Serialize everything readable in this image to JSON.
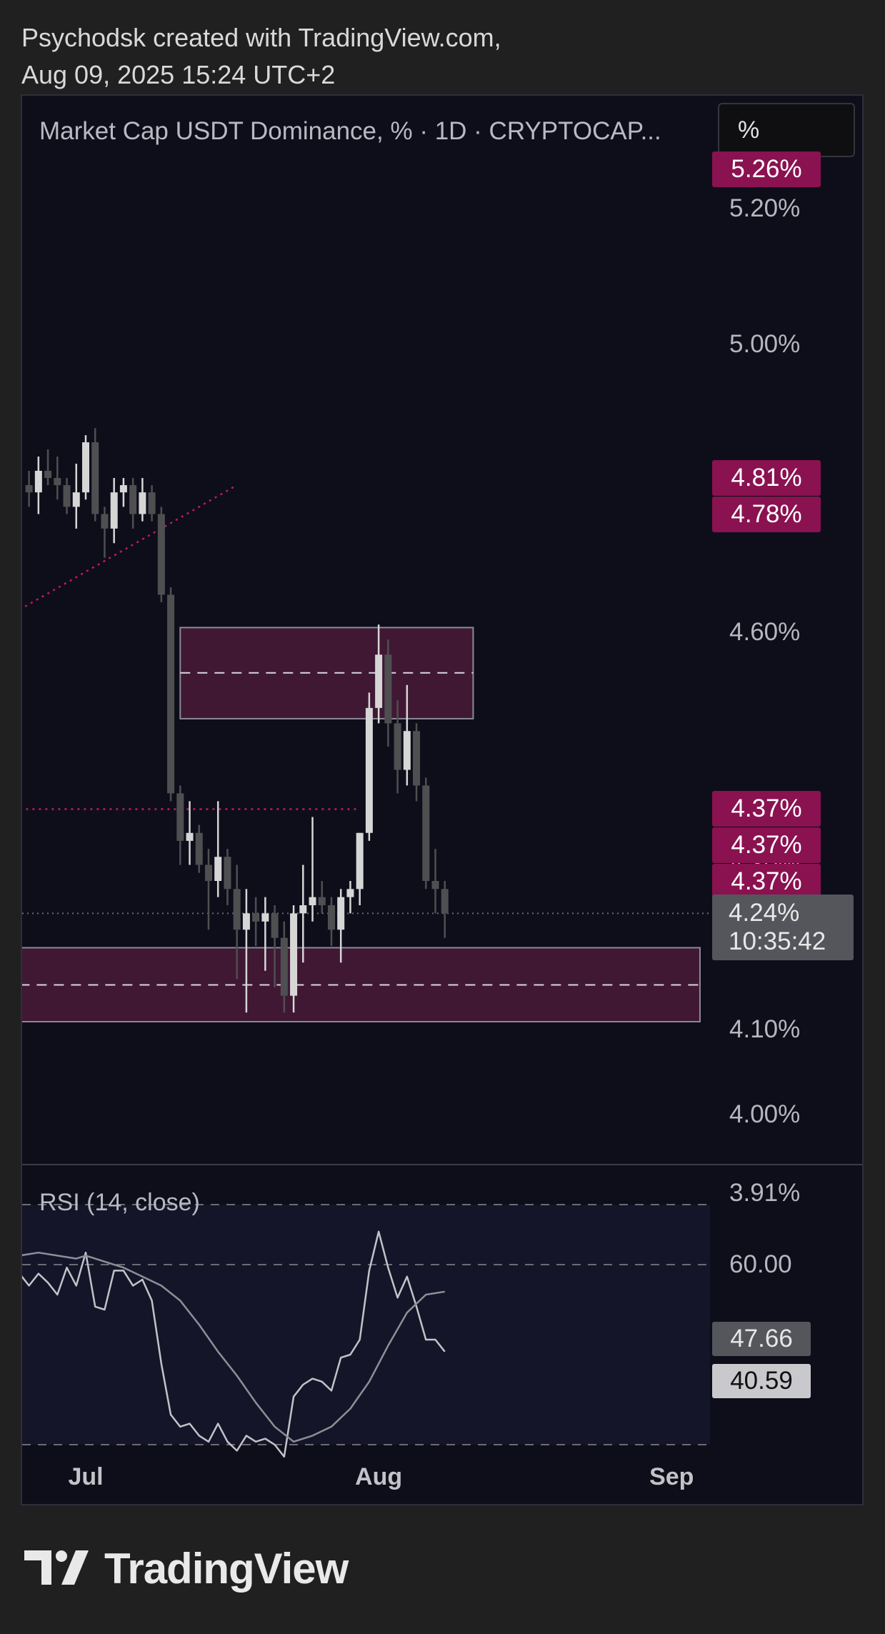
{
  "header": {
    "line1": "Psychodsk created with TradingView.com,",
    "line2": "Aug 09, 2025 15:24 UTC+2"
  },
  "chart": {
    "title": "Market Cap USDT Dominance, % · 1D · CRYPTOCAP...",
    "scale_button": "%",
    "rsi_title": "RSI (14, close)"
  },
  "colors": {
    "background": "#0d0e1a",
    "up_candle": "#d6d6d6",
    "down_candle": "#4f4f52",
    "zone_fill": "#4a1a38",
    "price_tag": "#8a1251",
    "trendline": "#c21a62"
  },
  "chart_data": [
    {
      "type": "candlestick",
      "title": "Market Cap USDT Dominance, % · 1D · CRYPTOCAP...",
      "ylabel": "%",
      "y_scale": "log",
      "ylim": [
        3.86,
        5.34
      ],
      "y_ticks": [
        "5.20%",
        "5.00%",
        "4.60%",
        "4.30%",
        "4.10%",
        "4.00%",
        "3.91%"
      ],
      "x_ticks": [
        "Jul",
        "Aug",
        "Sep"
      ],
      "x_tick_days": [
        0,
        31,
        62
      ],
      "candles": [
        {
          "day": -6,
          "o": 4.8,
          "h": 4.82,
          "l": 4.77,
          "c": 4.79
        },
        {
          "day": -5,
          "o": 4.79,
          "h": 4.84,
          "l": 4.76,
          "c": 4.82
        },
        {
          "day": -4,
          "o": 4.82,
          "h": 4.85,
          "l": 4.8,
          "c": 4.81
        },
        {
          "day": -3,
          "o": 4.81,
          "h": 4.84,
          "l": 4.78,
          "c": 4.8
        },
        {
          "day": -2,
          "o": 4.8,
          "h": 4.81,
          "l": 4.76,
          "c": 4.77
        },
        {
          "day": -1,
          "o": 4.77,
          "h": 4.83,
          "l": 4.74,
          "c": 4.79
        },
        {
          "day": 0,
          "o": 4.79,
          "h": 4.87,
          "l": 4.78,
          "c": 4.86
        },
        {
          "day": 1,
          "o": 4.86,
          "h": 4.88,
          "l": 4.75,
          "c": 4.76
        },
        {
          "day": 2,
          "o": 4.76,
          "h": 4.77,
          "l": 4.7,
          "c": 4.74
        },
        {
          "day": 3,
          "o": 4.74,
          "h": 4.81,
          "l": 4.72,
          "c": 4.79
        },
        {
          "day": 4,
          "o": 4.79,
          "h": 4.81,
          "l": 4.77,
          "c": 4.8
        },
        {
          "day": 5,
          "o": 4.8,
          "h": 4.81,
          "l": 4.74,
          "c": 4.76
        },
        {
          "day": 6,
          "o": 4.76,
          "h": 4.81,
          "l": 4.75,
          "c": 4.79
        },
        {
          "day": 7,
          "o": 4.79,
          "h": 4.8,
          "l": 4.75,
          "c": 4.76
        },
        {
          "day": 8,
          "o": 4.76,
          "h": 4.77,
          "l": 4.64,
          "c": 4.65
        },
        {
          "day": 9,
          "o": 4.65,
          "h": 4.66,
          "l": 4.38,
          "c": 4.39
        },
        {
          "day": 10,
          "o": 4.39,
          "h": 4.4,
          "l": 4.3,
          "c": 4.33
        },
        {
          "day": 11,
          "o": 4.33,
          "h": 4.38,
          "l": 4.3,
          "c": 4.34
        },
        {
          "day": 12,
          "o": 4.34,
          "h": 4.35,
          "l": 4.29,
          "c": 4.3
        },
        {
          "day": 13,
          "o": 4.3,
          "h": 4.32,
          "l": 4.22,
          "c": 4.28
        },
        {
          "day": 14,
          "o": 4.28,
          "h": 4.38,
          "l": 4.26,
          "c": 4.31
        },
        {
          "day": 15,
          "o": 4.31,
          "h": 4.32,
          "l": 4.25,
          "c": 4.27
        },
        {
          "day": 16,
          "o": 4.27,
          "h": 4.3,
          "l": 4.16,
          "c": 4.22
        },
        {
          "day": 17,
          "o": 4.22,
          "h": 4.27,
          "l": 4.12,
          "c": 4.24
        },
        {
          "day": 18,
          "o": 4.24,
          "h": 4.26,
          "l": 4.2,
          "c": 4.23
        },
        {
          "day": 19,
          "o": 4.23,
          "h": 4.26,
          "l": 4.17,
          "c": 4.24
        },
        {
          "day": 20,
          "o": 4.24,
          "h": 4.25,
          "l": 4.15,
          "c": 4.21
        },
        {
          "day": 21,
          "o": 4.21,
          "h": 4.23,
          "l": 4.12,
          "c": 4.14
        },
        {
          "day": 22,
          "o": 4.14,
          "h": 4.25,
          "l": 4.12,
          "c": 4.24
        },
        {
          "day": 23,
          "o": 4.24,
          "h": 4.3,
          "l": 4.18,
          "c": 4.25
        },
        {
          "day": 24,
          "o": 4.25,
          "h": 4.36,
          "l": 4.23,
          "c": 4.26
        },
        {
          "day": 25,
          "o": 4.26,
          "h": 4.28,
          "l": 4.24,
          "c": 4.25
        },
        {
          "day": 26,
          "o": 4.25,
          "h": 4.26,
          "l": 4.2,
          "c": 4.22
        },
        {
          "day": 27,
          "o": 4.22,
          "h": 4.27,
          "l": 4.18,
          "c": 4.26
        },
        {
          "day": 28,
          "o": 4.26,
          "h": 4.28,
          "l": 4.24,
          "c": 4.27
        },
        {
          "day": 29,
          "o": 4.27,
          "h": 4.34,
          "l": 4.25,
          "c": 4.34
        },
        {
          "day": 30,
          "o": 4.34,
          "h": 4.52,
          "l": 4.33,
          "c": 4.5
        },
        {
          "day": 31,
          "o": 4.5,
          "h": 4.61,
          "l": 4.48,
          "c": 4.57
        },
        {
          "day": 32,
          "o": 4.57,
          "h": 4.59,
          "l": 4.45,
          "c": 4.48
        },
        {
          "day": 33,
          "o": 4.48,
          "h": 4.51,
          "l": 4.39,
          "c": 4.42
        },
        {
          "day": 34,
          "o": 4.42,
          "h": 4.53,
          "l": 4.4,
          "c": 4.47
        },
        {
          "day": 35,
          "o": 4.47,
          "h": 4.48,
          "l": 4.38,
          "c": 4.4
        },
        {
          "day": 36,
          "o": 4.4,
          "h": 4.41,
          "l": 4.27,
          "c": 4.28
        },
        {
          "day": 37,
          "o": 4.28,
          "h": 4.32,
          "l": 4.24,
          "c": 4.27
        },
        {
          "day": 38,
          "o": 4.27,
          "h": 4.28,
          "l": 4.21,
          "c": 4.24
        }
      ],
      "zones": [
        {
          "top": 4.606,
          "bottom": 4.486,
          "mid": 4.546,
          "from_day": 10,
          "to_day": 41
        },
        {
          "top": 4.198,
          "bottom": 4.109,
          "mid": 4.153,
          "from_day": -7,
          "to_day": 65
        }
      ],
      "dotted_trendline": {
        "from": {
          "day": -7,
          "value": 4.63
        },
        "to": {
          "day": 16,
          "value": 4.8
        }
      },
      "dotted_level": {
        "value": 4.37,
        "from_day": -7,
        "to_day": 29
      },
      "last_price_line": 4.24,
      "price_tags": [
        "5.26%",
        "4.81%",
        "4.78%",
        "4.37%",
        "4.37%",
        "4.37%",
        "4.37%"
      ],
      "price_tag_values": [
        5.26,
        4.81,
        4.78,
        4.37,
        4.37,
        4.37,
        4.37
      ],
      "last_price_label": "4.24%",
      "countdown": "10:35:42"
    },
    {
      "type": "line",
      "title": "RSI (14, close)",
      "ylim": [
        25,
        75
      ],
      "y_ticks": [
        "60.00"
      ],
      "bands": [
        70,
        60,
        30
      ],
      "series": [
        {
          "name": "",
          "days": [
            -7,
            -6,
            -5,
            -4,
            -3,
            -2,
            -1,
            0,
            1,
            2,
            3,
            4,
            5,
            6,
            7,
            8,
            9,
            10,
            11,
            12,
            13,
            14,
            15,
            16,
            17,
            18,
            19,
            20,
            21,
            22,
            23,
            24,
            25,
            26,
            27,
            28,
            29,
            30,
            31,
            32,
            33,
            34,
            35,
            36,
            37,
            38
          ],
          "values": [
            58.5,
            56.5,
            58.5,
            57.0,
            55.0,
            59.5,
            56.5,
            62.0,
            53.0,
            52.5,
            59.0,
            59.0,
            56.5,
            57.5,
            54.0,
            43.5,
            35.0,
            33.0,
            33.5,
            31.5,
            30.5,
            33.5,
            30.5,
            29.0,
            31.5,
            30.5,
            31.0,
            30.0,
            28.0,
            38.0,
            40.0,
            41.0,
            40.5,
            39.0,
            44.5,
            45.0,
            47.5,
            59.0,
            65.5,
            59.5,
            54.5,
            58.0,
            53.0,
            47.5,
            47.5,
            45.5
          ]
        },
        {
          "name": "",
          "days": [
            -7,
            -5,
            -3,
            -1,
            0,
            2,
            4,
            6,
            8,
            10,
            12,
            14,
            16,
            18,
            20,
            22,
            24,
            26,
            28,
            30,
            32,
            34,
            36,
            38
          ],
          "values": [
            61.5,
            62.0,
            61.5,
            61.0,
            61.5,
            60.5,
            59.5,
            58.0,
            56.5,
            54.0,
            50.0,
            45.5,
            41.5,
            37.0,
            33.0,
            30.5,
            31.5,
            33.0,
            36.0,
            40.5,
            46.5,
            52.0,
            55.0,
            55.5
          ]
        }
      ],
      "last_values": [
        "47.66",
        "40.59"
      ]
    }
  ],
  "footer": {
    "logo_text": "TradingView"
  }
}
